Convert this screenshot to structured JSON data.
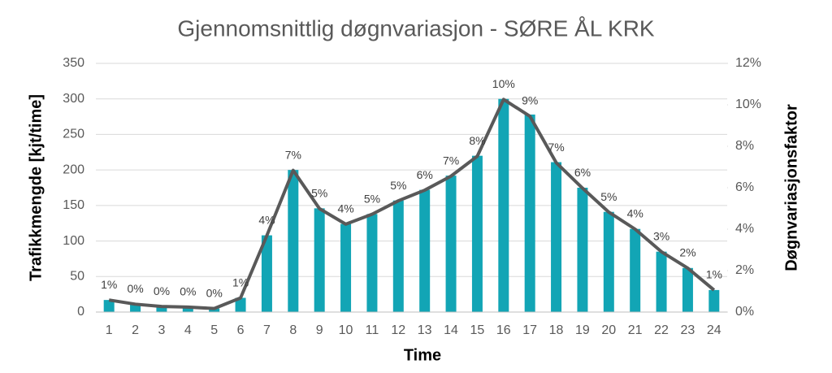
{
  "chart_data": {
    "type": "bar_line",
    "title": "Gjennomsnittlig døgnvariasjon - SØRE ÅL KRK",
    "x_label": "Time",
    "y_label": "Trafikkmengde [kjt/time]",
    "y2_label": "Døgnvariasjonsfaktor",
    "categories": [
      "1",
      "2",
      "3",
      "4",
      "5",
      "6",
      "7",
      "8",
      "9",
      "10",
      "11",
      "12",
      "13",
      "14",
      "15",
      "16",
      "17",
      "18",
      "19",
      "20",
      "21",
      "22",
      "23",
      "24"
    ],
    "series": [
      {
        "type": "bar",
        "color": "#12a5b5",
        "values": [
          17,
          11,
          8,
          7,
          5,
          20,
          108,
          200,
          146,
          124,
          138,
          157,
          172,
          192,
          220,
          300,
          278,
          211,
          175,
          141,
          117,
          85,
          62,
          31
        ]
      },
      {
        "type": "line",
        "axis": "y2",
        "color": "#595959",
        "values": [
          0.58,
          0.38,
          0.27,
          0.24,
          0.17,
          0.68,
          3.69,
          6.84,
          4.99,
          4.24,
          4.72,
          5.37,
          5.88,
          6.56,
          7.52,
          10.26,
          9.45,
          7.21,
          5.98,
          4.82,
          4.0,
          2.91,
          2.12,
          1.06
        ],
        "value_labels": [
          "1%",
          "0%",
          "0%",
          "0%",
          "0%",
          "1%",
          "4%",
          "7%",
          "5%",
          "4%",
          "5%",
          "5%",
          "6%",
          "7%",
          "8%",
          "10%",
          "9%",
          "7%",
          "6%",
          "5%",
          "4%",
          "3%",
          "2%",
          "1%"
        ]
      }
    ],
    "ylim": [
      0,
      350
    ],
    "yticks": [
      0,
      50,
      100,
      150,
      200,
      250,
      300,
      350
    ],
    "y2lim": [
      0,
      12
    ],
    "y2ticks": [
      {
        "value": 0,
        "label": "0%"
      },
      {
        "value": 2,
        "label": "2%"
      },
      {
        "value": 4,
        "label": "4%"
      },
      {
        "value": 6,
        "label": "6%"
      },
      {
        "value": 8,
        "label": "8%"
      },
      {
        "value": 10,
        "label": "10%"
      },
      {
        "value": 12,
        "label": "12%"
      }
    ],
    "grid": true
  }
}
